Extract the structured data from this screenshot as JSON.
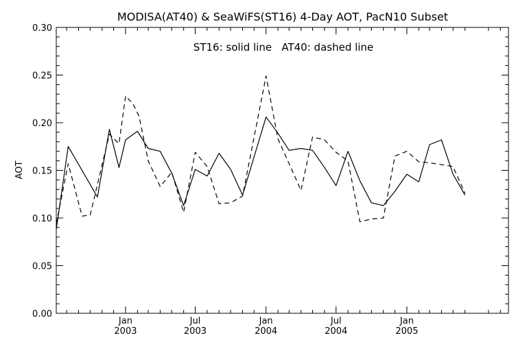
{
  "chart_data": {
    "type": "line",
    "title": "MODISA(AT40) & SeaWiFS(ST16) 4-Day AOT, PacN10 Subset",
    "annotation": "ST16: solid line   AT40: dashed line",
    "xlabel": "",
    "ylabel": "AOT",
    "xlim": [
      "2002-07-05",
      "2005-09-22"
    ],
    "ylim": [
      0.0,
      0.3
    ],
    "yticks": [
      0.0,
      0.05,
      0.1,
      0.15,
      0.2,
      0.25,
      0.3
    ],
    "ytick_labels": [
      "0.00",
      "0.05",
      "0.10",
      "0.15",
      "0.20",
      "0.25",
      "0.30"
    ],
    "xticks": [
      {
        "date": "2003-01-01",
        "month": "Jan",
        "year": "2003"
      },
      {
        "date": "2003-07-01",
        "month": "Jul",
        "year": "2003"
      },
      {
        "date": "2004-01-01",
        "month": "Jan",
        "year": "2004"
      },
      {
        "date": "2004-07-01",
        "month": "Jul",
        "year": "2004"
      },
      {
        "date": "2005-01-01",
        "month": "Jan",
        "year": "2005"
      }
    ],
    "grid": false,
    "series": [
      {
        "name": "ST16",
        "style": "solid",
        "color": "#000000",
        "points": [
          [
            "2002-07-05",
            0.088
          ],
          [
            "2002-08-05",
            0.175
          ],
          [
            "2002-10-20",
            0.122
          ],
          [
            "2002-11-20",
            0.193
          ],
          [
            "2002-12-15",
            0.153
          ],
          [
            "2003-01-01",
            0.182
          ],
          [
            "2003-02-01",
            0.191
          ],
          [
            "2003-03-01",
            0.173
          ],
          [
            "2003-04-01",
            0.17
          ],
          [
            "2003-05-01",
            0.147
          ],
          [
            "2003-06-01",
            0.113
          ],
          [
            "2003-07-01",
            0.151
          ],
          [
            "2003-08-01",
            0.144
          ],
          [
            "2003-09-01",
            0.168
          ],
          [
            "2003-10-01",
            0.151
          ],
          [
            "2003-11-01",
            0.124
          ],
          [
            "2004-01-01",
            0.206
          ],
          [
            "2004-02-01",
            0.189
          ],
          [
            "2004-03-01",
            0.171
          ],
          [
            "2004-04-01",
            0.173
          ],
          [
            "2004-05-01",
            0.171
          ],
          [
            "2004-06-01",
            0.153
          ],
          [
            "2004-07-01",
            0.134
          ],
          [
            "2004-08-01",
            0.17
          ],
          [
            "2004-09-01",
            0.139
          ],
          [
            "2004-10-01",
            0.116
          ],
          [
            "2004-11-01",
            0.113
          ],
          [
            "2004-12-01",
            0.128
          ],
          [
            "2005-01-01",
            0.146
          ],
          [
            "2005-02-01",
            0.138
          ],
          [
            "2005-03-01",
            0.177
          ],
          [
            "2005-04-01",
            0.182
          ],
          [
            "2005-05-01",
            0.146
          ],
          [
            "2005-06-01",
            0.124
          ]
        ]
      },
      {
        "name": "AT40",
        "style": "dashed",
        "color": "#000000",
        "points": [
          [
            "2002-07-05",
            0.094
          ],
          [
            "2002-08-05",
            0.157
          ],
          [
            "2002-09-10",
            0.102
          ],
          [
            "2002-10-01",
            0.103
          ],
          [
            "2002-11-20",
            0.188
          ],
          [
            "2002-12-15",
            0.178
          ],
          [
            "2003-01-01",
            0.228
          ],
          [
            "2003-01-20",
            0.22
          ],
          [
            "2003-02-05",
            0.207
          ],
          [
            "2003-03-01",
            0.16
          ],
          [
            "2003-04-01",
            0.133
          ],
          [
            "2003-05-01",
            0.148
          ],
          [
            "2003-06-01",
            0.106
          ],
          [
            "2003-07-01",
            0.169
          ],
          [
            "2003-08-01",
            0.154
          ],
          [
            "2003-09-01",
            0.115
          ],
          [
            "2003-10-01",
            0.116
          ],
          [
            "2003-11-01",
            0.123
          ],
          [
            "2004-01-01",
            0.249
          ],
          [
            "2004-02-01",
            0.183
          ],
          [
            "2004-03-01",
            0.157
          ],
          [
            "2004-04-01",
            0.129
          ],
          [
            "2004-05-01",
            0.185
          ],
          [
            "2004-06-01",
            0.182
          ],
          [
            "2004-07-01",
            0.169
          ],
          [
            "2004-08-01",
            0.16
          ],
          [
            "2004-09-01",
            0.096
          ],
          [
            "2004-10-01",
            0.099
          ],
          [
            "2004-11-01",
            0.1
          ],
          [
            "2004-12-01",
            0.165
          ],
          [
            "2005-01-01",
            0.17
          ],
          [
            "2005-02-01",
            0.159
          ],
          [
            "2005-03-01",
            0.158
          ],
          [
            "2005-04-01",
            0.156
          ],
          [
            "2005-05-01",
            0.154
          ],
          [
            "2005-06-01",
            0.126
          ]
        ]
      }
    ]
  }
}
